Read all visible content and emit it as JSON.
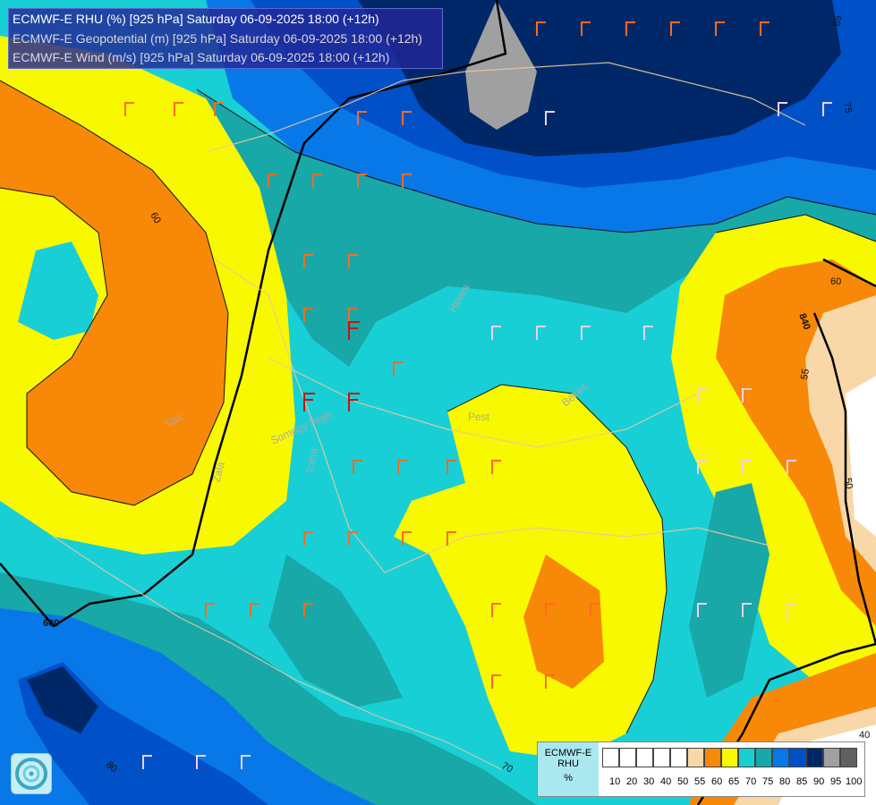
{
  "title": {
    "line1": "ECMWF-E RHU (%) [925 hPa] Saturday 06-09-2025 18:00 (+12h)",
    "line2": "ECMWF-E Geopotential (m) [925 hPa] Saturday 06-09-2025 18:00 (+12h)",
    "line3": "ECMWF-E Wind (m/s) [925 hPa] Saturday 06-09-2025 18:00 (+12h)"
  },
  "legend": {
    "model": "ECMWF-E",
    "variable": "RHU",
    "unit": "%",
    "ticks": [
      "10",
      "20",
      "30",
      "40",
      "50",
      "55",
      "60",
      "65",
      "70",
      "75",
      "80",
      "85",
      "90",
      "95",
      "100"
    ],
    "colors": [
      "#ffffff",
      "#ffffff",
      "#ffffff",
      "#ffffff",
      "#ffffff",
      "#f8d8a8",
      "#f88808",
      "#f8f800",
      "#18d0d0",
      "#18a8a8",
      "#0878e8",
      "#0050c8",
      "#002868",
      "#a0a0a0",
      "#606060"
    ]
  },
  "map_labels": {
    "region_pest": "Pest",
    "region_vas": "Vas",
    "region_zala": "Zala",
    "region_somogy_fejer": "Somogy Fejér",
    "region_tolna": "Tolna",
    "region_heves": "Heves",
    "region_bekes": "Békés",
    "contour_60_left": "60",
    "contour_60_right": "60",
    "contour_55": "55",
    "contour_50": "50",
    "contour_65": "65",
    "contour_75": "75",
    "contour_70": "70",
    "contour_80": "80",
    "contour_40": "40",
    "geo_840": "840",
    "geo_600": "600"
  }
}
